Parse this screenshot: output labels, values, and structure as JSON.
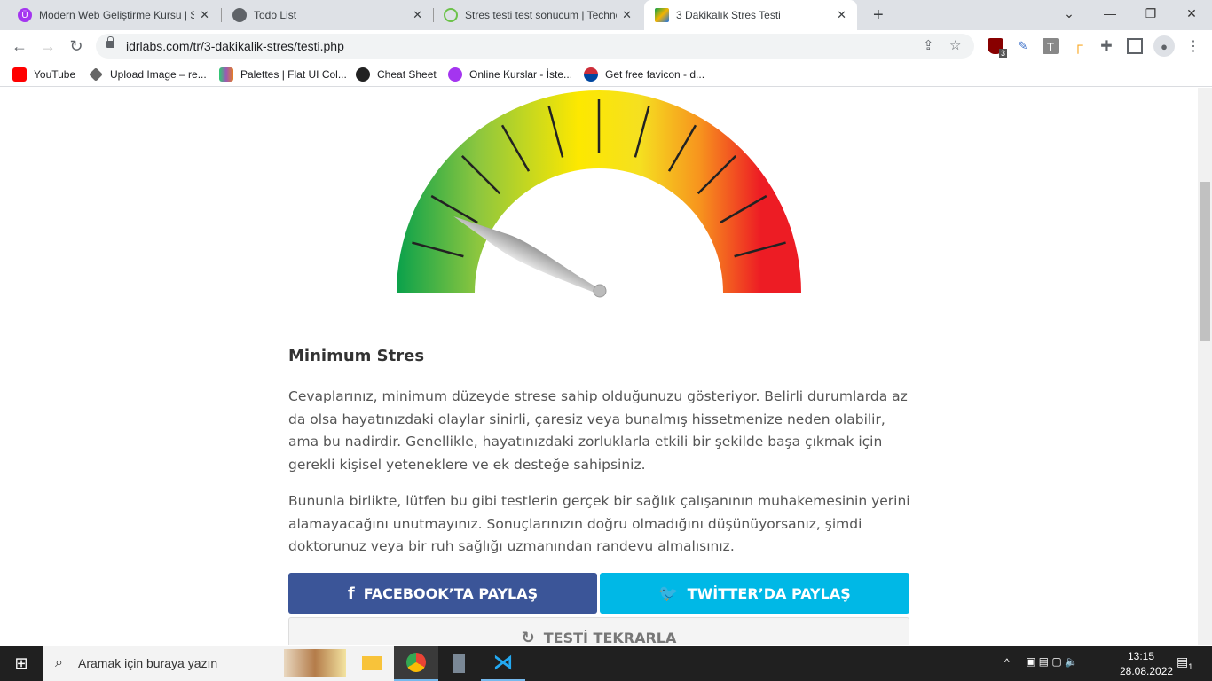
{
  "browser": {
    "tabs": [
      {
        "title": "Modern Web Geliştirme Kursu | S",
        "icon": "udemy-icon",
        "color": "#a435f0"
      },
      {
        "title": "Todo List",
        "icon": "globe-icon",
        "color": "#5f6368"
      },
      {
        "title": "Stres testi test sonucum | Techno",
        "icon": "power-icon",
        "color": "#6cc24a"
      },
      {
        "title": "3 Dakikalık Stres Testi",
        "icon": "idrlabs-icon",
        "color": "#f4b400",
        "active": true
      }
    ],
    "new_tab": "+",
    "url": "idrlabs.com/tr/3-dakikalik-stres/testi.php",
    "extensions": {
      "ublock_badge": "3"
    },
    "bookmarks": [
      {
        "label": "YouTube",
        "color": "#ff0000"
      },
      {
        "label": "Upload Image – re...",
        "color": "#666"
      },
      {
        "label": "Palettes | Flat UI Col...",
        "color": "#e67e22"
      },
      {
        "label": "Cheat Sheet",
        "color": "#222"
      },
      {
        "label": "Online Kurslar - İste...",
        "color": "#a435f0"
      },
      {
        "label": "Get free favicon - d...",
        "color": "#cd2e3a"
      }
    ]
  },
  "gauge": {
    "level_fraction": 0.15,
    "colors": [
      "#0aa14b",
      "#8cc63f",
      "#fde800",
      "#f7931e",
      "#ed1c24"
    ]
  },
  "result": {
    "title": "Minimum Stres",
    "paragraphs": [
      "Cevaplarınız, minimum düzeyde strese sahip olduğunuzu gösteriyor. Belirli durumlarda az da olsa hayatınızdaki olaylar sinirli, çaresiz veya bunalmış hissetmenize neden olabilir, ama bu nadirdir. Genellikle, hayatınızdaki zorluklarla etkili bir şekilde başa çıkmak için gerekli kişisel yeteneklere ve ek desteğe sahipsiniz.",
      "Bununla birlikte, lütfen bu gibi testlerin gerçek bir sağlık çalışanının muhakemesinin yerini alamayacağını unutmayınız. Sonuçlarınızın doğru olmadığını düşünüyorsanız, şimdi doktorunuz veya bir ruh sağlığı uzmanından randevu almalısınız."
    ],
    "facebook": "FACEBOOK’TA PAYLAŞ",
    "twitter": "TWİTTER’DA PAYLAŞ",
    "retry": "TESTİ TEKRARLA",
    "facebook_color": "#3b5598",
    "twitter_color": "#00b8e6"
  },
  "taskbar": {
    "search_placeholder": "Aramak için buraya yazın",
    "time": "13:15",
    "date": "28.08.2022",
    "notifications": "1"
  }
}
